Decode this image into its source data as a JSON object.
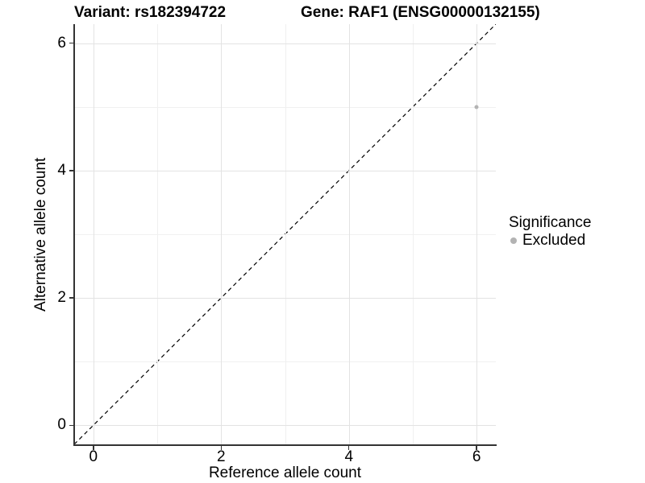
{
  "chart_data": {
    "type": "scatter",
    "titles": {
      "variant": "Variant: rs182394722",
      "gene": "Gene: RAF1 (ENSG00000132155)"
    },
    "xlabel": "Reference allele count",
    "ylabel": "Alternative allele count",
    "xlim": [
      -0.3,
      6.3
    ],
    "ylim": [
      -0.3,
      6.3
    ],
    "x_major_ticks": [
      0,
      2,
      4,
      6
    ],
    "x_minor_ticks": [
      1,
      3,
      5
    ],
    "y_major_ticks": [
      0,
      2,
      4,
      6
    ],
    "y_minor_ticks": [
      1,
      3,
      5
    ],
    "grid": "major+minor",
    "reference_line": {
      "style": "dashed",
      "color": "#000000",
      "x1": -0.3,
      "y1": -0.3,
      "x2": 6.3,
      "y2": 6.3
    },
    "series": [
      {
        "name": "Excluded",
        "color": "#b3b3b3",
        "points": [
          {
            "x": 6,
            "y": 5
          }
        ]
      }
    ],
    "legend": {
      "title": "Significance",
      "position": "right",
      "entries": [
        {
          "label": "Excluded",
          "color": "#b3b3b3",
          "marker": "circle"
        }
      ]
    },
    "colors": {
      "background": "#ffffff",
      "grid_major": "#e3e3e3",
      "grid_minor": "#f0f0f0",
      "axis": "#333333",
      "text": "#000000"
    }
  }
}
